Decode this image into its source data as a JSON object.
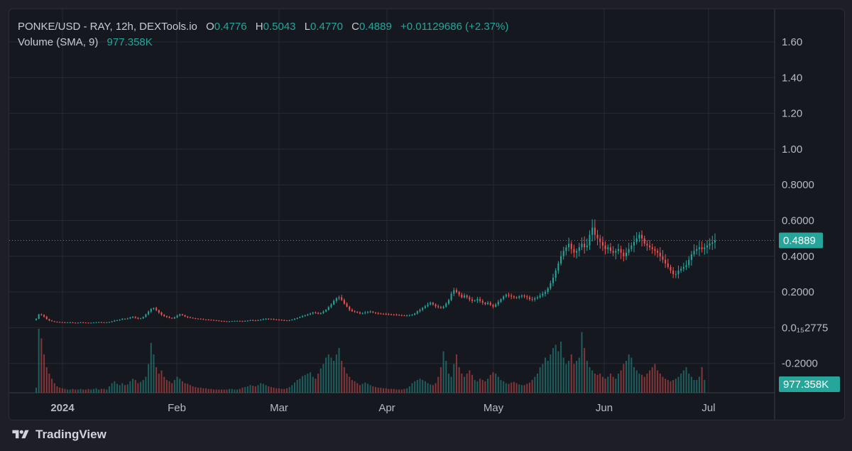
{
  "legend": {
    "symbol": "PONKE/USD - RAY, 12h, DEXTools.io",
    "o_label": "O",
    "o_value": "0.4776",
    "h_label": "H",
    "h_value": "0.5043",
    "l_label": "L",
    "l_value": "0.4770",
    "c_label": "C",
    "c_value": "0.4889",
    "change": "+0.01129686 (+2.37%)",
    "volume_label": "Volume (SMA, 9)",
    "volume_value": "977.358K"
  },
  "brand": "TradingView",
  "colors": {
    "up": "#26a69a",
    "down": "#ef5350",
    "grid": "#262a34",
    "text": "#b7bac2"
  },
  "price_tag": "0.4889",
  "volume_tag": "977.358K",
  "chart_data": {
    "type": "candlestick",
    "price_axis_ticks": [
      {
        "value": 1.6,
        "label": "1.60"
      },
      {
        "value": 1.4,
        "label": "1.40"
      },
      {
        "value": 1.2,
        "label": "1.20"
      },
      {
        "value": 1.0,
        "label": "1.00"
      },
      {
        "value": 0.8,
        "label": "0.8000"
      },
      {
        "value": 0.6,
        "label": "0.6000"
      },
      {
        "value": 0.4,
        "label": "0.4000"
      },
      {
        "value": 0.2,
        "label": "0.2000"
      },
      {
        "value": 0.0,
        "label": "0.0₁₅2775"
      },
      {
        "value": -0.2,
        "label": "-0.2000"
      }
    ],
    "time_axis_labels": [
      "2024",
      "Feb",
      "Mar",
      "Apr",
      "May",
      "Jun",
      "Jul"
    ],
    "last_close": 0.4889,
    "last_volume": "977.358K",
    "close_series_12h": [
      0.05,
      0.075,
      0.072,
      0.062,
      0.048,
      0.04,
      0.036,
      0.033,
      0.032,
      0.031,
      0.03,
      0.029,
      0.03,
      0.03,
      0.028,
      0.027,
      0.028,
      0.03,
      0.029,
      0.028,
      0.027,
      0.028,
      0.029,
      0.03,
      0.031,
      0.03,
      0.029,
      0.03,
      0.032,
      0.035,
      0.04,
      0.042,
      0.045,
      0.05,
      0.048,
      0.052,
      0.058,
      0.06,
      0.055,
      0.05,
      0.052,
      0.06,
      0.075,
      0.09,
      0.105,
      0.11,
      0.098,
      0.085,
      0.072,
      0.065,
      0.06,
      0.055,
      0.052,
      0.058,
      0.068,
      0.075,
      0.07,
      0.062,
      0.058,
      0.055,
      0.053,
      0.051,
      0.05,
      0.048,
      0.046,
      0.045,
      0.044,
      0.043,
      0.042,
      0.04,
      0.038,
      0.037,
      0.036,
      0.035,
      0.036,
      0.037,
      0.038,
      0.038,
      0.037,
      0.036,
      0.038,
      0.04,
      0.042,
      0.041,
      0.04,
      0.042,
      0.045,
      0.048,
      0.05,
      0.049,
      0.048,
      0.046,
      0.045,
      0.044,
      0.042,
      0.041,
      0.04,
      0.042,
      0.045,
      0.05,
      0.055,
      0.06,
      0.065,
      0.07,
      0.075,
      0.08,
      0.085,
      0.082,
      0.078,
      0.082,
      0.09,
      0.1,
      0.115,
      0.13,
      0.15,
      0.165,
      0.17,
      0.155,
      0.135,
      0.118,
      0.1,
      0.092,
      0.088,
      0.085,
      0.08,
      0.082,
      0.086,
      0.088,
      0.09,
      0.085,
      0.082,
      0.08,
      0.078,
      0.077,
      0.076,
      0.075,
      0.074,
      0.073,
      0.072,
      0.07,
      0.069,
      0.068,
      0.068,
      0.07,
      0.072,
      0.08,
      0.092,
      0.1,
      0.11,
      0.12,
      0.13,
      0.14,
      0.13,
      0.12,
      0.115,
      0.11,
      0.118,
      0.135,
      0.155,
      0.19,
      0.21,
      0.2,
      0.185,
      0.17,
      0.18,
      0.17,
      0.158,
      0.15,
      0.152,
      0.16,
      0.15,
      0.14,
      0.132,
      0.14,
      0.128,
      0.118,
      0.13,
      0.145,
      0.16,
      0.175,
      0.185,
      0.18,
      0.175,
      0.17,
      0.168,
      0.175,
      0.18,
      0.175,
      0.17,
      0.16,
      0.158,
      0.165,
      0.17,
      0.18,
      0.19,
      0.2,
      0.22,
      0.25,
      0.28,
      0.32,
      0.36,
      0.4,
      0.43,
      0.45,
      0.47,
      0.44,
      0.42,
      0.43,
      0.45,
      0.47,
      0.45,
      0.46,
      0.52,
      0.56,
      0.52,
      0.5,
      0.48,
      0.46,
      0.44,
      0.45,
      0.43,
      0.42,
      0.43,
      0.44,
      0.42,
      0.4,
      0.42,
      0.44,
      0.46,
      0.48,
      0.5,
      0.52,
      0.5,
      0.47,
      0.46,
      0.45,
      0.44,
      0.43,
      0.42,
      0.4,
      0.38,
      0.36,
      0.34,
      0.32,
      0.3,
      0.3,
      0.32,
      0.33,
      0.34,
      0.35,
      0.38,
      0.41,
      0.43,
      0.44,
      0.45,
      0.44,
      0.45,
      0.46,
      0.47,
      0.4776,
      0.4889
    ],
    "volume_series_12h": [
      0.08,
      1.0,
      0.85,
      0.6,
      0.4,
      0.3,
      0.22,
      0.15,
      0.1,
      0.08,
      0.07,
      0.06,
      0.05,
      0.05,
      0.06,
      0.05,
      0.05,
      0.06,
      0.05,
      0.05,
      0.06,
      0.05,
      0.06,
      0.07,
      0.05,
      0.06,
      0.06,
      0.05,
      0.1,
      0.15,
      0.18,
      0.14,
      0.12,
      0.15,
      0.12,
      0.13,
      0.18,
      0.22,
      0.2,
      0.15,
      0.17,
      0.2,
      0.25,
      0.45,
      0.78,
      0.6,
      0.4,
      0.3,
      0.35,
      0.25,
      0.2,
      0.18,
      0.15,
      0.2,
      0.25,
      0.22,
      0.18,
      0.15,
      0.14,
      0.12,
      0.1,
      0.09,
      0.08,
      0.08,
      0.07,
      0.07,
      0.06,
      0.06,
      0.05,
      0.05,
      0.05,
      0.05,
      0.05,
      0.05,
      0.06,
      0.06,
      0.05,
      0.05,
      0.06,
      0.08,
      0.09,
      0.1,
      0.12,
      0.11,
      0.1,
      0.12,
      0.15,
      0.14,
      0.12,
      0.1,
      0.09,
      0.08,
      0.07,
      0.07,
      0.06,
      0.06,
      0.07,
      0.09,
      0.12,
      0.16,
      0.2,
      0.22,
      0.26,
      0.28,
      0.3,
      0.32,
      0.25,
      0.22,
      0.3,
      0.38,
      0.45,
      0.55,
      0.6,
      0.55,
      0.5,
      0.6,
      0.7,
      0.5,
      0.4,
      0.3,
      0.25,
      0.2,
      0.18,
      0.15,
      0.12,
      0.14,
      0.16,
      0.14,
      0.12,
      0.1,
      0.09,
      0.08,
      0.08,
      0.07,
      0.07,
      0.06,
      0.06,
      0.06,
      0.05,
      0.05,
      0.05,
      0.06,
      0.07,
      0.1,
      0.15,
      0.18,
      0.2,
      0.22,
      0.2,
      0.18,
      0.15,
      0.13,
      0.12,
      0.15,
      0.25,
      0.4,
      0.65,
      0.5,
      0.3,
      0.25,
      0.45,
      0.6,
      0.4,
      0.3,
      0.25,
      0.3,
      0.35,
      0.28,
      0.2,
      0.18,
      0.22,
      0.2,
      0.18,
      0.22,
      0.28,
      0.32,
      0.3,
      0.25,
      0.2,
      0.18,
      0.15,
      0.14,
      0.16,
      0.17,
      0.15,
      0.13,
      0.12,
      0.12,
      0.14,
      0.16,
      0.2,
      0.25,
      0.3,
      0.4,
      0.45,
      0.55,
      0.5,
      0.6,
      0.7,
      0.75,
      0.65,
      0.8,
      0.55,
      0.45,
      0.5,
      0.6,
      0.45,
      0.5,
      0.55,
      0.95,
      0.7,
      0.5,
      0.4,
      0.35,
      0.3,
      0.28,
      0.3,
      0.25,
      0.22,
      0.25,
      0.3,
      0.25,
      0.22,
      0.3,
      0.35,
      0.45,
      0.5,
      0.6,
      0.55,
      0.4,
      0.35,
      0.3,
      0.28,
      0.25,
      0.3,
      0.35,
      0.4,
      0.45,
      0.35,
      0.3,
      0.25,
      0.22,
      0.2,
      0.18,
      0.2,
      0.22,
      0.25,
      0.3,
      0.35,
      0.4,
      0.3,
      0.25,
      0.2,
      0.2,
      0.25,
      0.4,
      0.2
    ]
  }
}
